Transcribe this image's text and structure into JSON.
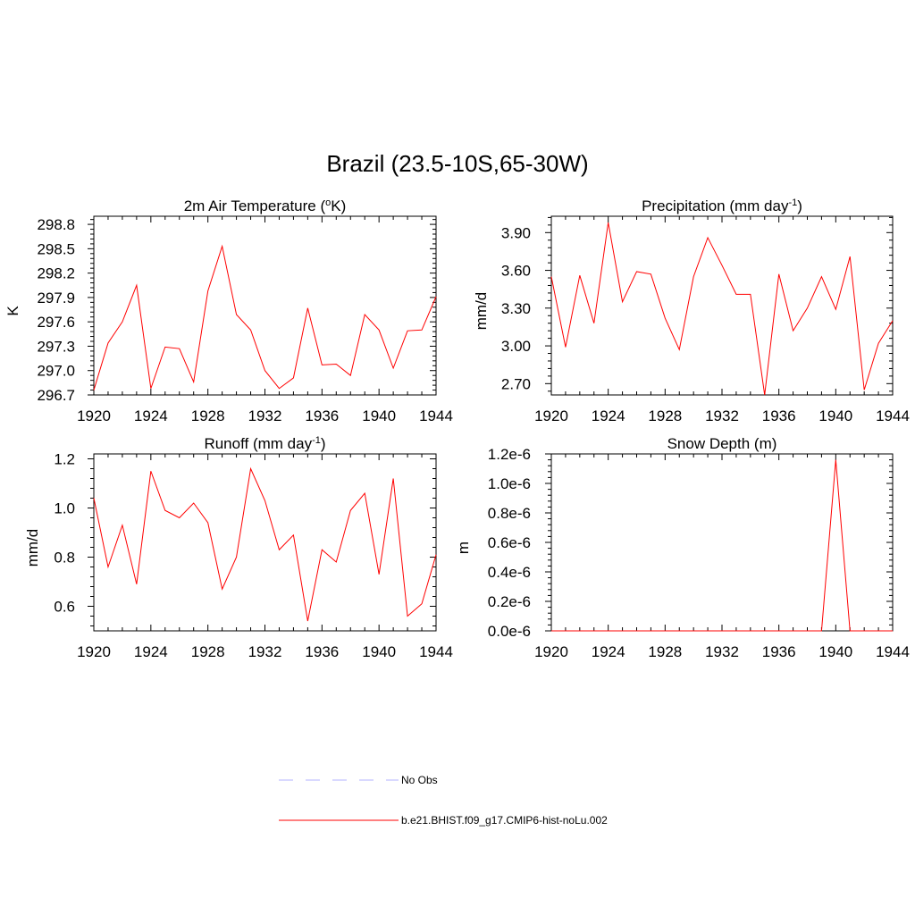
{
  "title": "Brazil (23.5-10S,65-30W)",
  "legend": {
    "entries": [
      {
        "label": "No Obs",
        "color": "#b3b3ff",
        "style": "dashed"
      },
      {
        "label": "b.e21.BHIST.f09_g17.CMIP6-hist-noLu.002",
        "color": "#ff0000",
        "style": "solid"
      }
    ]
  },
  "chart_data": [
    {
      "type": "line",
      "title": "2m Air Temperature (",
      "title_sup": "o",
      "title_tail": "K)",
      "ylabel": "K",
      "xlim": [
        1920,
        1944
      ],
      "ylim": [
        296.7,
        298.9
      ],
      "xticks": [
        1920,
        1924,
        1928,
        1932,
        1936,
        1940,
        1944
      ],
      "xtick_labels": [
        "1920",
        "1924",
        "1928",
        "1932",
        "1936",
        "1940",
        "1944"
      ],
      "yticks": [
        296.7,
        297.0,
        297.3,
        297.6,
        297.9,
        298.2,
        298.5,
        298.8
      ],
      "ytick_labels": [
        "296.7",
        "297.0",
        "297.3",
        "297.6",
        "297.9",
        "298.2",
        "298.5",
        "298.8"
      ],
      "series": [
        {
          "color": "#ff0000",
          "x": [
            1920,
            1921,
            1922,
            1923,
            1924,
            1925,
            1926,
            1927,
            1928,
            1929,
            1930,
            1931,
            1932,
            1933,
            1934,
            1935,
            1936,
            1937,
            1938,
            1939,
            1940,
            1941,
            1942,
            1943,
            1944
          ],
          "y": [
            296.76,
            297.34,
            297.6,
            298.05,
            296.78,
            297.29,
            297.27,
            296.86,
            297.98,
            298.53,
            297.69,
            297.5,
            297.0,
            296.78,
            296.91,
            297.77,
            297.07,
            297.08,
            296.94,
            297.69,
            297.5,
            297.03,
            297.49,
            297.5,
            297.91
          ]
        }
      ]
    },
    {
      "type": "line",
      "title": "Precipitation (mm day",
      "title_sup": "-1",
      "title_tail": ")",
      "ylabel": "mm/d",
      "xlim": [
        1920,
        1944
      ],
      "ylim": [
        2.61,
        4.03
      ],
      "xticks": [
        1920,
        1924,
        1928,
        1932,
        1936,
        1940,
        1944
      ],
      "xtick_labels": [
        "1920",
        "1924",
        "1928",
        "1932",
        "1936",
        "1940",
        "1944"
      ],
      "yticks": [
        2.7,
        3.0,
        3.3,
        3.6,
        3.9
      ],
      "ytick_labels": [
        "2.70",
        "3.00",
        "3.30",
        "3.60",
        "3.90"
      ],
      "series": [
        {
          "color": "#ff0000",
          "x": [
            1920,
            1921,
            1922,
            1923,
            1924,
            1925,
            1926,
            1927,
            1928,
            1929,
            1930,
            1931,
            1932,
            1933,
            1934,
            1935,
            1936,
            1937,
            1938,
            1939,
            1940,
            1941,
            1942,
            1943,
            1944
          ],
          "y": [
            3.55,
            2.99,
            3.56,
            3.18,
            3.98,
            3.35,
            3.59,
            3.57,
            3.22,
            2.97,
            3.55,
            3.86,
            3.64,
            3.41,
            3.41,
            2.61,
            3.57,
            3.12,
            3.3,
            3.55,
            3.29,
            3.71,
            2.65,
            3.02,
            3.2
          ]
        }
      ]
    },
    {
      "type": "line",
      "title": "Runoff (mm day",
      "title_sup": "-1",
      "title_tail": ")",
      "ylabel": "mm/d",
      "xlim": [
        1920,
        1944
      ],
      "ylim": [
        0.5,
        1.22
      ],
      "xticks": [
        1920,
        1924,
        1928,
        1932,
        1936,
        1940,
        1944
      ],
      "xtick_labels": [
        "1920",
        "1924",
        "1928",
        "1932",
        "1936",
        "1940",
        "1944"
      ],
      "yticks": [
        0.6,
        0.8,
        1.0,
        1.2
      ],
      "ytick_labels": [
        "0.6",
        "0.8",
        "1.0",
        "1.2"
      ],
      "series": [
        {
          "color": "#ff0000",
          "x": [
            1920,
            1921,
            1922,
            1923,
            1924,
            1925,
            1926,
            1927,
            1928,
            1929,
            1930,
            1931,
            1932,
            1933,
            1934,
            1935,
            1936,
            1937,
            1938,
            1939,
            1940,
            1941,
            1942,
            1943,
            1944
          ],
          "y": [
            1.04,
            0.76,
            0.93,
            0.69,
            1.15,
            0.99,
            0.96,
            1.02,
            0.94,
            0.67,
            0.8,
            1.16,
            1.03,
            0.83,
            0.89,
            0.54,
            0.83,
            0.78,
            0.99,
            1.06,
            0.73,
            1.12,
            0.56,
            0.61,
            0.81
          ]
        }
      ]
    },
    {
      "type": "line",
      "title": "Snow Depth (m)",
      "title_sup": "",
      "title_tail": "",
      "ylabel": "m",
      "xlim": [
        1920,
        1944
      ],
      "ylim": [
        0.0,
        1.2e-06
      ],
      "xticks": [
        1920,
        1924,
        1928,
        1932,
        1936,
        1940,
        1944
      ],
      "xtick_labels": [
        "1920",
        "1924",
        "1928",
        "1932",
        "1936",
        "1940",
        "1944"
      ],
      "yticks": [
        0.0,
        2e-07,
        4e-07,
        6e-07,
        8e-07,
        1e-06,
        1.2e-06
      ],
      "ytick_labels": [
        "0.0e-6",
        "0.2e-6",
        "0.4e-6",
        "0.6e-6",
        "0.8e-6",
        "1.0e-6",
        "1.2e-6"
      ],
      "series": [
        {
          "color": "#ff0000",
          "x": [
            1920,
            1921,
            1922,
            1923,
            1924,
            1925,
            1926,
            1927,
            1928,
            1929,
            1930,
            1931,
            1932,
            1933,
            1934,
            1935,
            1936,
            1937,
            1938,
            1939,
            1940,
            1941,
            1942,
            1943,
            1944
          ],
          "y": [
            0,
            0,
            0,
            0,
            0,
            0,
            0,
            0,
            0,
            0,
            0,
            0,
            0,
            0,
            0,
            0,
            0,
            0,
            0,
            0,
            1.16e-06,
            0,
            0,
            0,
            0
          ]
        }
      ]
    }
  ]
}
